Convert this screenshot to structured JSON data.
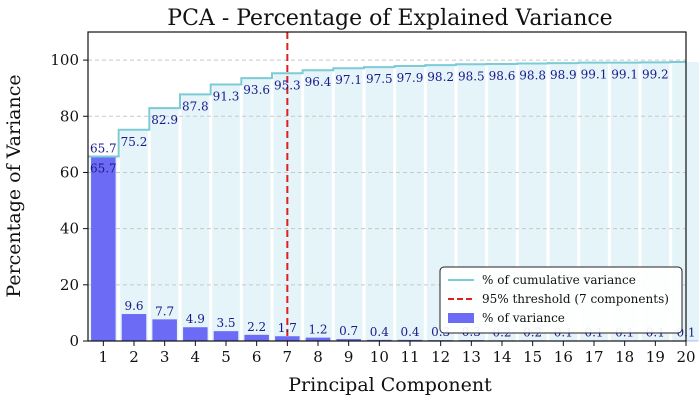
{
  "chart_data": {
    "type": "bar",
    "title": "PCA - Percentage of Explained Variance",
    "xlabel": "Principal Component",
    "ylabel": "Percentage of Variance",
    "ylim": [
      0,
      110
    ],
    "yticks": [
      0,
      20,
      40,
      60,
      80,
      100
    ],
    "grid": true,
    "legend_position": "bottom-right",
    "categories": [
      "1",
      "2",
      "3",
      "4",
      "5",
      "6",
      "7",
      "8",
      "9",
      "10",
      "11",
      "12",
      "13",
      "14",
      "15",
      "16",
      "17",
      "18",
      "19",
      "20"
    ],
    "series": [
      {
        "name": "% of variance",
        "kind": "bar",
        "color": "#6b6bf5",
        "values": [
          65.7,
          9.6,
          7.7,
          4.9,
          3.5,
          2.2,
          1.7,
          1.2,
          0.7,
          0.4,
          0.4,
          0.3,
          0.3,
          0.2,
          0.2,
          0.1,
          0.1,
          0.1,
          0.1,
          0.1
        ],
        "value_labels": [
          "65.7",
          "9.6",
          "7.7",
          "4.9",
          "3.5",
          "2.2",
          "1.7",
          "1.2",
          "0.7",
          "0.4",
          "0.4",
          "0.3",
          "0.3",
          "0.2",
          "0.2",
          "0.1",
          "0.1",
          "0.1",
          "0.1",
          "0.1"
        ]
      },
      {
        "name": "% of cumulative variance",
        "kind": "step",
        "color": "#7ccbd6",
        "fill_color": "#e4f4f9",
        "values": [
          65.7,
          75.2,
          82.9,
          87.8,
          91.3,
          93.6,
          95.3,
          96.4,
          97.1,
          97.5,
          97.9,
          98.2,
          98.5,
          98.6,
          98.8,
          98.9,
          99.1,
          99.1,
          99.2,
          99.3
        ],
        "value_labels": [
          "65.7",
          "75.2",
          "82.9",
          "87.8",
          "91.3",
          "93.6",
          "95.3",
          "96.4",
          "97.1",
          "97.5",
          "97.9",
          "98.2",
          "98.5",
          "98.6",
          "98.8",
          "98.9",
          "99.1",
          "99.1",
          "99.2"
        ]
      }
    ],
    "threshold": {
      "name": "95% threshold (7 components)",
      "component": 7,
      "color": "#e02020"
    },
    "legend": [
      {
        "label": "% of cumulative variance",
        "kind": "line",
        "color": "#7ccbd6"
      },
      {
        "label": "95% threshold (7 components)",
        "kind": "dashed",
        "color": "#e02020"
      },
      {
        "label": "% of variance",
        "kind": "patch",
        "color": "#6b6bf5"
      }
    ]
  }
}
